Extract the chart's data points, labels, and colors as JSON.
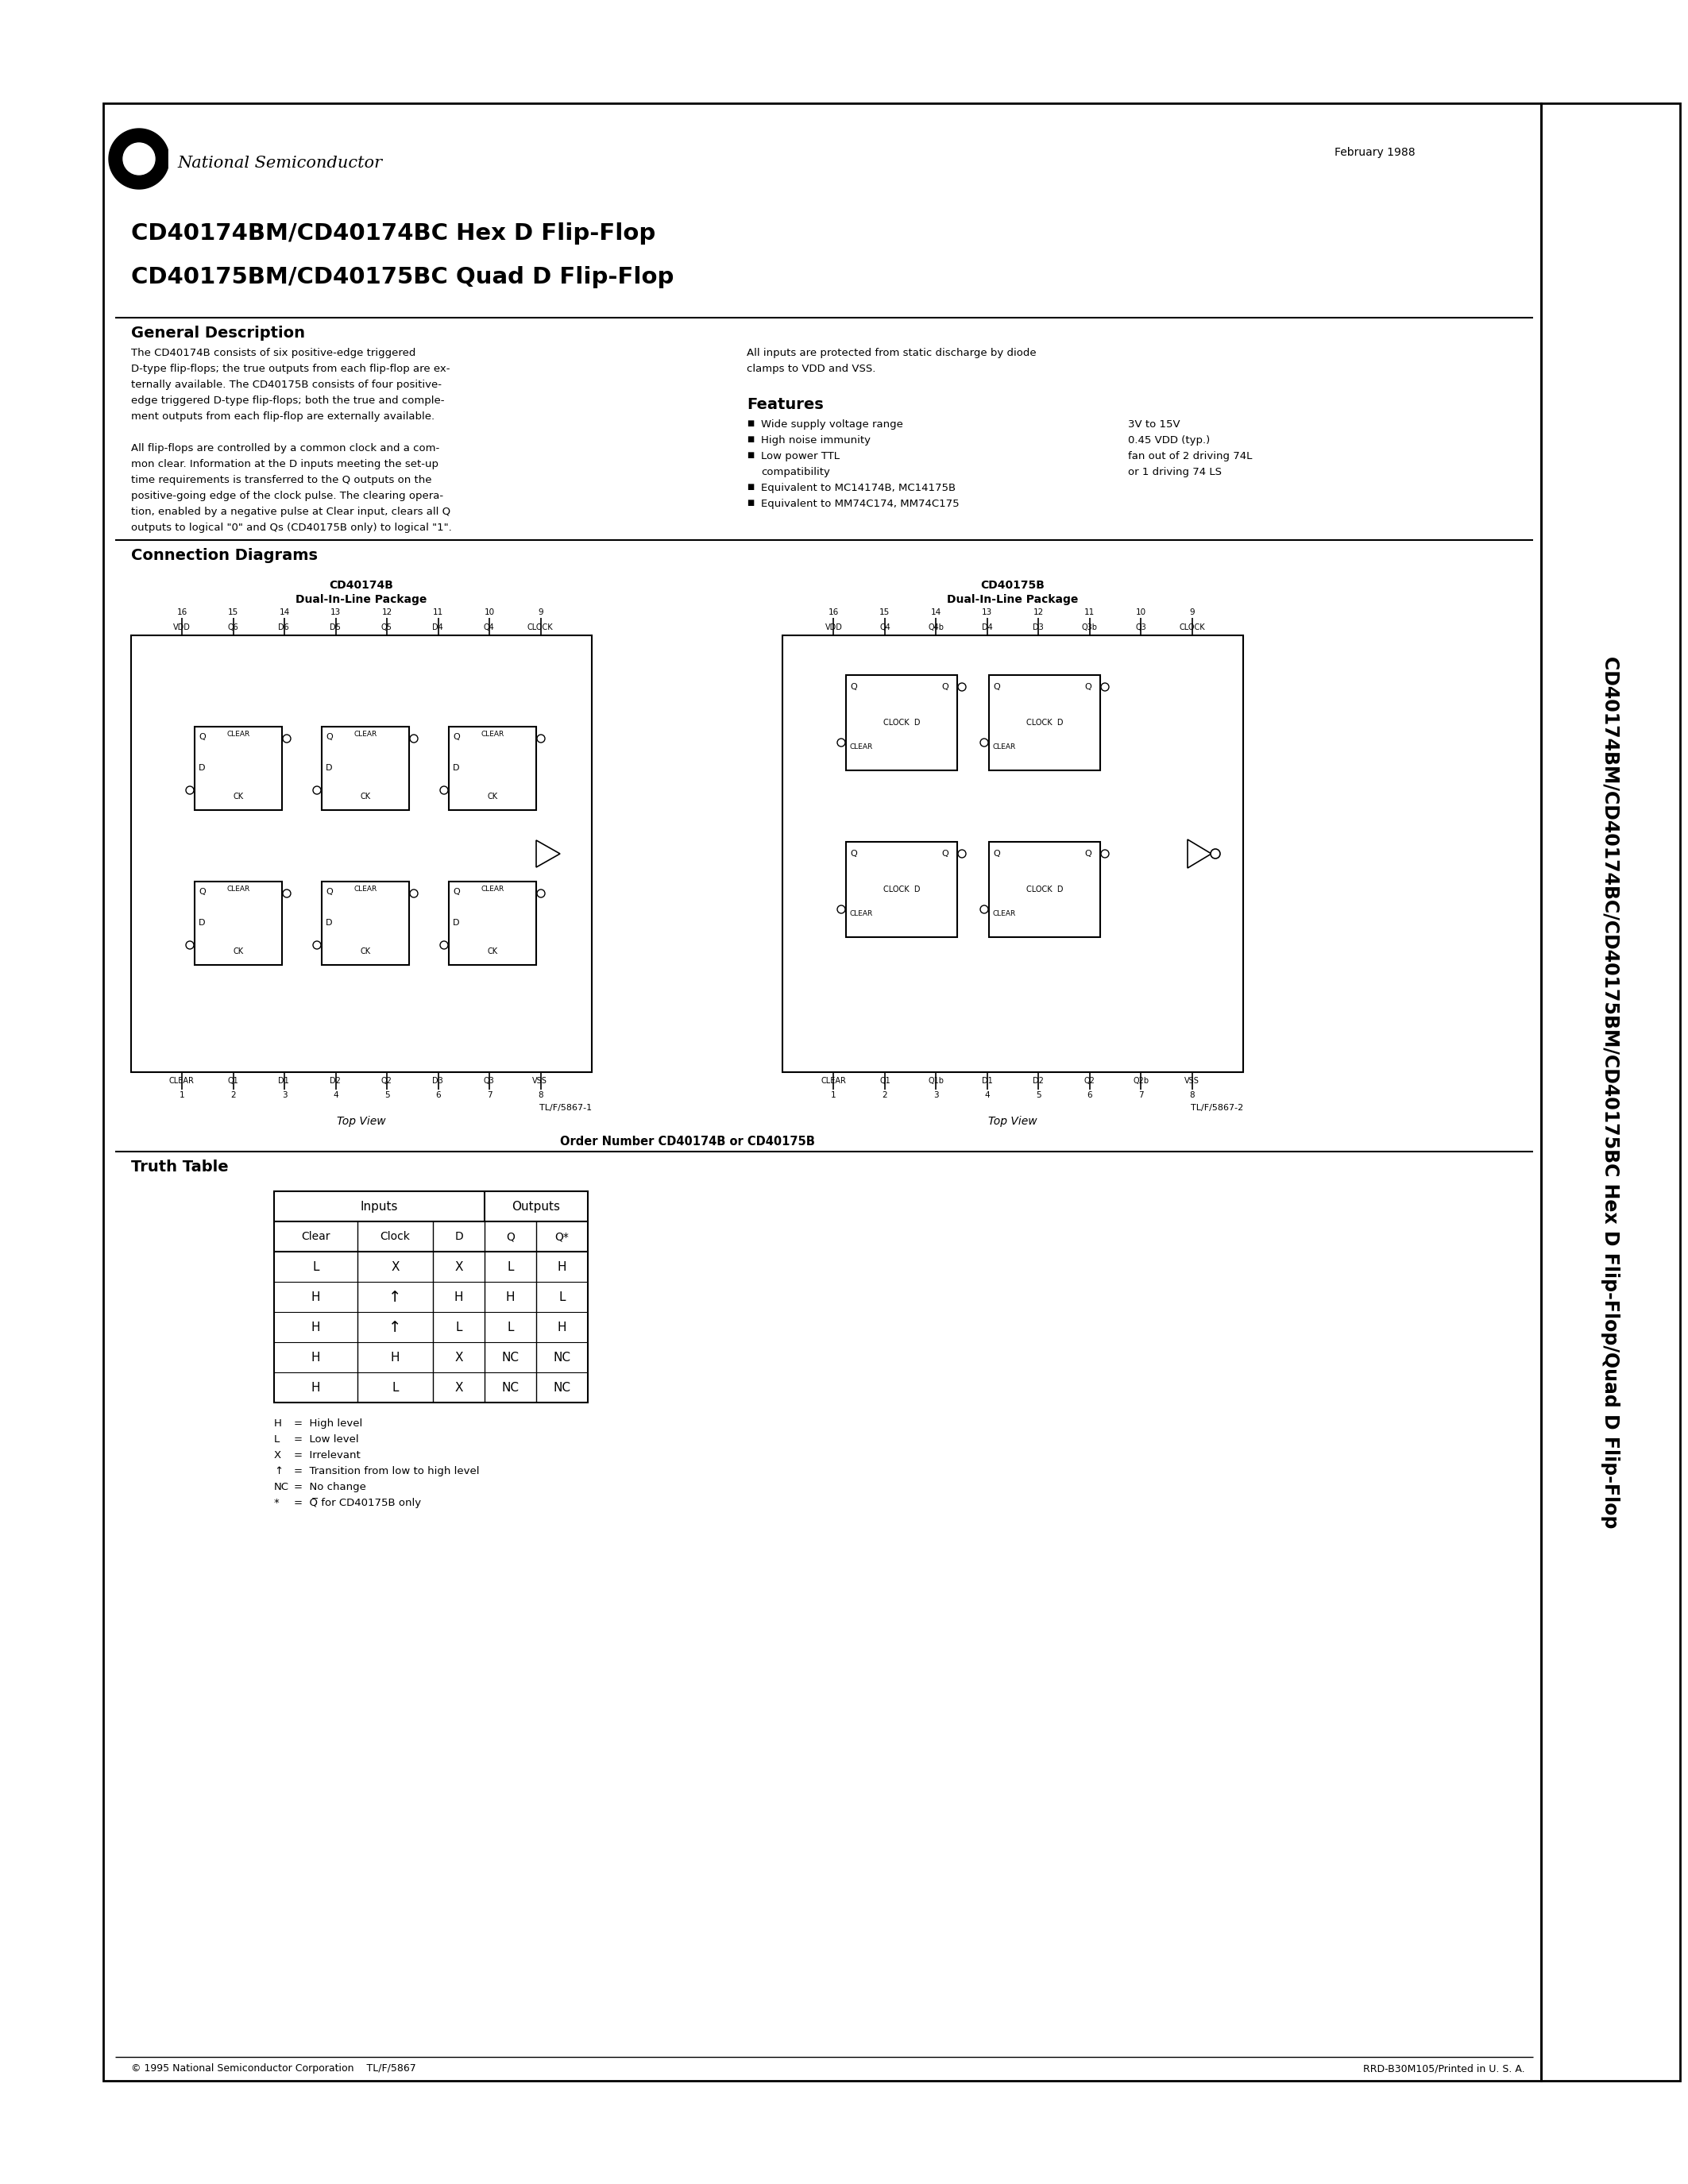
{
  "page_bg": "#ffffff",
  "date": "February 1988",
  "title_line1": "CD40174BM/CD40174BC Hex D Flip-Flop",
  "title_line2": "CD40175BM/CD40175BC Quad D Flip-Flop",
  "gen_desc_left1": "The CD40174B consists of six positive-edge triggered",
  "gen_desc_left2": "D-type flip-flops; the true outputs from each flip-flop are ex-",
  "gen_desc_left3": "ternally available. The CD40175B consists of four positive-",
  "gen_desc_left4": "edge triggered D-type flip-flops; both the true and comple-",
  "gen_desc_left5": "ment outputs from each flip-flop are externally available.",
  "gen_desc_left6": "",
  "gen_desc_left7": "All flip-flops are controlled by a common clock and a com-",
  "gen_desc_left8": "mon clear. Information at the D inputs meeting the set-up",
  "gen_desc_left9": "time requirements is transferred to the Q outputs on the",
  "gen_desc_left10": "positive-going edge of the clock pulse. The clearing opera-",
  "gen_desc_left11": "tion, enabled by a negative pulse at Clear input, clears all Q",
  "gen_desc_left12": "outputs to logical \"0\" and Qs (CD40175B only) to logical \"1\".",
  "gen_desc_right1": "All inputs are protected from static discharge by diode",
  "gen_desc_right2": "clamps to VDD and VSS.",
  "features_title": "Features",
  "feat1_l": "Wide supply voltage range",
  "feat1_r": "3V to 15V",
  "feat2_l": "High noise immunity",
  "feat2_r": "0.45 VDD (typ.)",
  "feat3_l": "Low power TTL",
  "feat3_r": "fan out of 2 driving 74L",
  "feat3b_l": "compatibility",
  "feat3b_r": "or 1 driving 74 LS",
  "feat4_l": "Equivalent to MC14174B, MC14175B",
  "feat5_l": "Equivalent to MM74C174, MM74C175",
  "conn_title": "Connection Diagrams",
  "cd174_title": "CD40174B",
  "cd174_pkg": "Dual-In-Line Package",
  "cd175_title": "CD40175B",
  "cd175_pkg": "Dual-In-Line Package",
  "top_view": "Top View",
  "tl_ref1": "TL/F/5867-1",
  "tl_ref2": "TL/F/5867-2",
  "order_num": "Order Number CD40174B or CD40175B",
  "truth_title": "Truth Table",
  "truth_col1": "Clear",
  "truth_col2": "Clock",
  "truth_col3": "D",
  "truth_col4": "Q",
  "truth_col5": "Q*",
  "truth_data": [
    [
      "L",
      "X",
      "X",
      "L",
      "H"
    ],
    [
      "H",
      "T",
      "H",
      "H",
      "L"
    ],
    [
      "H",
      "T",
      "L",
      "L",
      "H"
    ],
    [
      "H",
      "H",
      "X",
      "NC",
      "NC"
    ],
    [
      "H",
      "L",
      "X",
      "NC",
      "NC"
    ]
  ],
  "note1": "H   =  High level",
  "note2": "L   =  Low level",
  "note3": "X   =  Irrelevant",
  "note4": "T   =  Transition from low to high level",
  "note5": "NC =  No change",
  "note6": "*   =  Q for CD40175B only",
  "footer_l": "© 1995 National Semiconductor Corporation    TL/F/5867",
  "footer_r": "RRD-B30M105/Printed in U. S. A.",
  "sidebar": "CD40174BM/CD40174BC/CD40175BM/CD40175BC Hex D Flip-Flop/Quad D Flip-Flop"
}
